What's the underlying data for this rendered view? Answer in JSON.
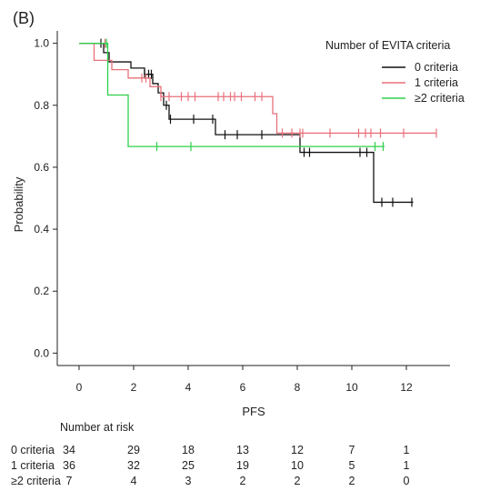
{
  "panel_label": "(B)",
  "chart_data": {
    "type": "line",
    "subtype": "kaplan-meier",
    "xlabel": "PFS",
    "ylabel": "Probability",
    "xlim": [
      -0.8,
      13.6
    ],
    "ylim": [
      -0.04,
      1.04
    ],
    "xticks": [
      0,
      2,
      4,
      6,
      8,
      10,
      12
    ],
    "yticks": [
      0.0,
      0.2,
      0.4,
      0.6,
      0.8,
      1.0
    ],
    "ytick_labels": [
      "0.0",
      "0.2",
      "0.4",
      "0.6",
      "0.8",
      "1.0"
    ],
    "grid": false,
    "legend": {
      "title": "Number of EVITA criteria",
      "placement": "top-right"
    },
    "series": [
      {
        "name": "0 criteria",
        "color": "#111111",
        "steps": [
          [
            0,
            1.0
          ],
          [
            0.9,
            0.97
          ],
          [
            1.1,
            0.94
          ],
          [
            1.9,
            0.92
          ],
          [
            2.4,
            0.9
          ],
          [
            2.7,
            0.87
          ],
          [
            2.9,
            0.84
          ],
          [
            3.1,
            0.8
          ],
          [
            3.3,
            0.755
          ],
          [
            5.0,
            0.705
          ],
          [
            8.1,
            0.648
          ],
          [
            10.8,
            0.487
          ],
          [
            12.25,
            0.487
          ]
        ],
        "censors": [
          [
            0.8,
            1.0
          ],
          [
            2.4,
            0.9
          ],
          [
            2.55,
            0.9
          ],
          [
            2.65,
            0.9
          ],
          [
            3.2,
            0.8
          ],
          [
            3.35,
            0.755
          ],
          [
            4.2,
            0.755
          ],
          [
            4.9,
            0.755
          ],
          [
            5.35,
            0.705
          ],
          [
            5.8,
            0.705
          ],
          [
            6.7,
            0.705
          ],
          [
            8.25,
            0.648
          ],
          [
            8.45,
            0.648
          ],
          [
            10.3,
            0.648
          ],
          [
            10.55,
            0.648
          ],
          [
            11.1,
            0.487
          ],
          [
            11.5,
            0.487
          ],
          [
            12.2,
            0.487
          ]
        ]
      },
      {
        "name": "1 criteria",
        "color": "#e8707a",
        "steps": [
          [
            0,
            1.0
          ],
          [
            0.55,
            0.945
          ],
          [
            1.2,
            0.915
          ],
          [
            1.8,
            0.888
          ],
          [
            2.6,
            0.86
          ],
          [
            3.0,
            0.828
          ],
          [
            7.1,
            0.773
          ],
          [
            7.25,
            0.71
          ],
          [
            13.1,
            0.71
          ]
        ],
        "censors": [
          [
            0.95,
            1.0
          ],
          [
            2.3,
            0.888
          ],
          [
            2.45,
            0.888
          ],
          [
            3.0,
            0.828
          ],
          [
            3.3,
            0.828
          ],
          [
            3.75,
            0.828
          ],
          [
            4.0,
            0.828
          ],
          [
            4.25,
            0.828
          ],
          [
            5.1,
            0.828
          ],
          [
            5.3,
            0.828
          ],
          [
            5.55,
            0.828
          ],
          [
            5.7,
            0.828
          ],
          [
            5.95,
            0.828
          ],
          [
            6.45,
            0.828
          ],
          [
            6.7,
            0.828
          ],
          [
            7.45,
            0.71
          ],
          [
            7.8,
            0.71
          ],
          [
            8.1,
            0.71
          ],
          [
            8.2,
            0.71
          ],
          [
            9.2,
            0.71
          ],
          [
            10.25,
            0.71
          ],
          [
            10.5,
            0.71
          ],
          [
            10.7,
            0.71
          ],
          [
            11.05,
            0.71
          ],
          [
            11.9,
            0.71
          ],
          [
            13.1,
            0.71
          ]
        ]
      },
      {
        "name": "≥2 criteria",
        "color": "#2ed04a",
        "steps": [
          [
            0,
            1.0
          ],
          [
            1.05,
            0.833
          ],
          [
            1.8,
            0.667
          ],
          [
            11.2,
            0.667
          ]
        ],
        "censors": [
          [
            1.0,
            1.0
          ],
          [
            2.85,
            0.667
          ],
          [
            4.1,
            0.667
          ],
          [
            10.85,
            0.667
          ],
          [
            11.15,
            0.667
          ]
        ]
      }
    ],
    "risk_table": {
      "title": "Number at risk",
      "times": [
        0,
        2,
        4,
        6,
        8,
        10,
        12
      ],
      "rows": [
        {
          "label": "0 criteria",
          "values": [
            "34",
            "29",
            "18",
            "13",
            "12",
            "7",
            "1"
          ]
        },
        {
          "label": "1 criteria",
          "values": [
            "36",
            "32",
            "25",
            "19",
            "10",
            "5",
            "1"
          ]
        },
        {
          "label": "≥2 criteria",
          "values": [
            "7",
            "4",
            "3",
            "2",
            "2",
            "2",
            "0"
          ]
        }
      ]
    }
  }
}
